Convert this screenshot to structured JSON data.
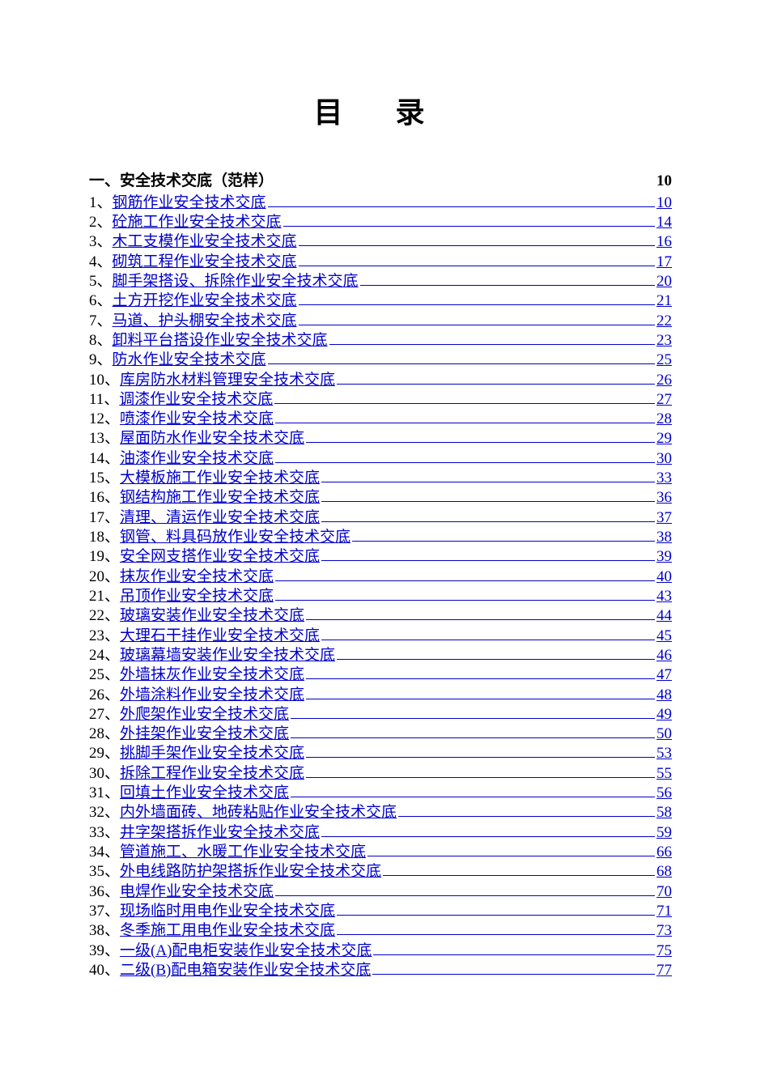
{
  "title": "目  录",
  "section": {
    "label": "一、安全技术交底（范样）",
    "page": "10"
  },
  "link_color": "#0000cc",
  "text_color": "#000000",
  "background_color": "#ffffff",
  "font_family": "SimSun",
  "title_fontsize": 36,
  "body_fontsize": 19,
  "entries": [
    {
      "num": "1",
      "label": "钢筋作业安全技术交底",
      "page": "10"
    },
    {
      "num": "2",
      "label": "砼施工作业安全技术交底",
      "page": "14"
    },
    {
      "num": "3",
      "label": "木工支模作业安全技术交底",
      "page": "16"
    },
    {
      "num": "4",
      "label": "砌筑工程作业安全技术交底",
      "page": "17"
    },
    {
      "num": "5",
      "label": "脚手架搭设、拆除作业安全技术交底",
      "page": "20"
    },
    {
      "num": "6",
      "label": "土方开挖作业安全技术交底",
      "page": "21"
    },
    {
      "num": "7",
      "label": "马道、护头棚安全技术交底",
      "page": "22"
    },
    {
      "num": "8",
      "label": "卸料平台搭设作业安全技术交底",
      "page": "23"
    },
    {
      "num": "9",
      "label": "防水作业安全技术交底",
      "page": "25"
    },
    {
      "num": "10",
      "label": "库房防水材料管理安全技术交底",
      "page": "26"
    },
    {
      "num": "11",
      "label": "调漆作业安全技术交底",
      "page": "27"
    },
    {
      "num": "12",
      "label": "喷漆作业安全技术交底",
      "page": "28"
    },
    {
      "num": "13",
      "label": "屋面防水作业安全技术交底",
      "page": "29"
    },
    {
      "num": "14",
      "label": "油漆作业安全技术交底",
      "page": "30"
    },
    {
      "num": "15",
      "label": "大模板施工作业安全技术交底",
      "page": "33"
    },
    {
      "num": "16",
      "label": "钢结构施工作业安全技术交底",
      "page": "36"
    },
    {
      "num": "17",
      "label": "清理、清运作业安全技术交底",
      "page": "37"
    },
    {
      "num": "18",
      "label": "钢管、料具码放作业安全技术交底",
      "page": "38"
    },
    {
      "num": "19",
      "label": "安全网支搭作业安全技术交底",
      "page": "39"
    },
    {
      "num": "20",
      "label": "抹灰作业安全技术交底",
      "page": "40"
    },
    {
      "num": "21",
      "label": "吊顶作业安全技术交底",
      "page": "43"
    },
    {
      "num": "22",
      "label": "玻璃安装作业安全技术交底",
      "page": "44"
    },
    {
      "num": "23",
      "label": "大理石干挂作业安全技术交底",
      "page": "45"
    },
    {
      "num": "24",
      "label": "玻璃幕墙安装作业安全技术交底",
      "page": "46"
    },
    {
      "num": "25",
      "label": "外墙抹灰作业安全技术交底",
      "page": "47"
    },
    {
      "num": "26",
      "label": "外墙涂料作业安全技术交底",
      "page": "48"
    },
    {
      "num": "27",
      "label": "外爬架作业安全技术交底",
      "page": "49"
    },
    {
      "num": "28",
      "label": "外挂架作业安全技术交底",
      "page": "50"
    },
    {
      "num": "29",
      "label": "挑脚手架作业安全技术交底",
      "page": "53"
    },
    {
      "num": "30",
      "label": "拆除工程作业安全技术交底",
      "page": "55"
    },
    {
      "num": "31",
      "label": "回填土作业安全技术交底",
      "page": "56"
    },
    {
      "num": "32",
      "label": "内外墙面砖、地砖粘贴作业安全技术交底",
      "page": "58"
    },
    {
      "num": "33",
      "label": "井字架搭拆作业安全技术交底",
      "page": "59"
    },
    {
      "num": "34",
      "label": "管道施工、水暖工作业安全技术交底",
      "page": "66"
    },
    {
      "num": "35",
      "label": "外电线路防护架搭拆作业安全技术交底",
      "page": "68"
    },
    {
      "num": "36",
      "label": "电焊作业安全技术交底",
      "page": "70"
    },
    {
      "num": "37",
      "label": "现场临时用电作业安全技术交底",
      "page": "71"
    },
    {
      "num": "38",
      "label": "冬季施工用电作业安全技术交底",
      "page": "73"
    },
    {
      "num": "39",
      "label": "一级(A)配电柜安装作业安全技术交底",
      "page": "75"
    },
    {
      "num": "40",
      "label": "二级(B)配电箱安装作业安全技术交底",
      "page": "77"
    }
  ]
}
